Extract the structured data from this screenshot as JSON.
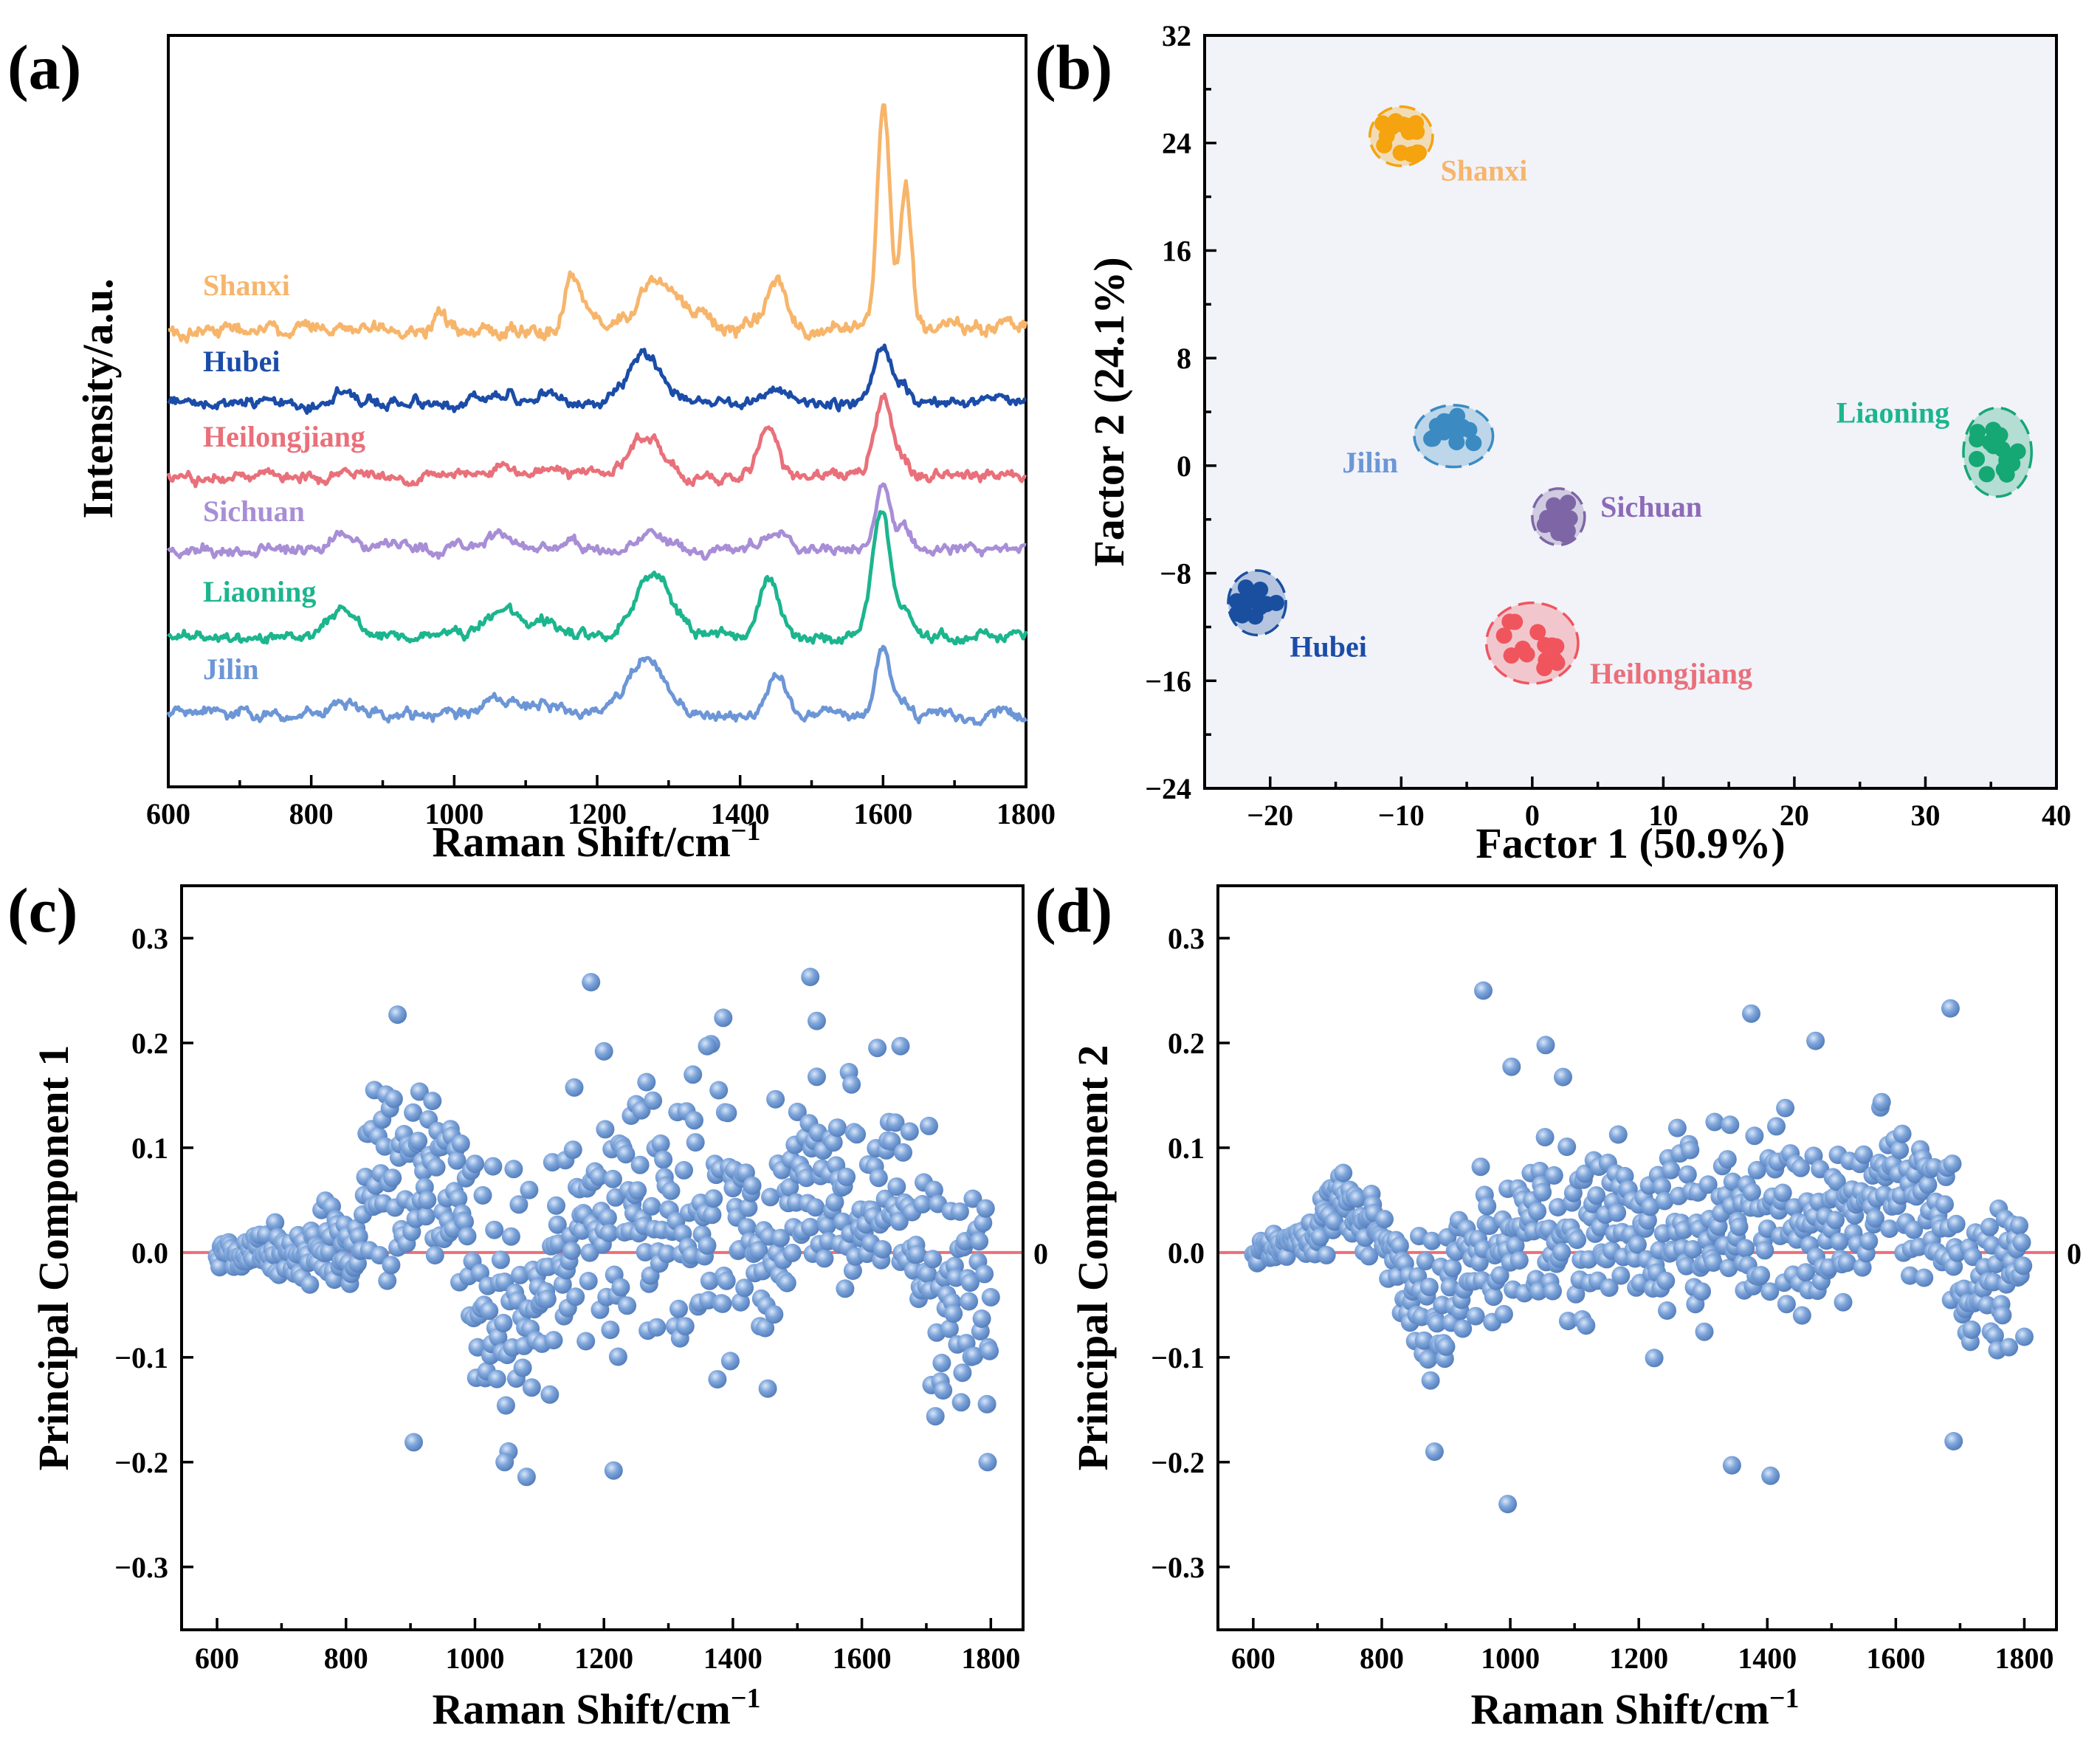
{
  "chart_data": [
    {
      "panel": "(a)",
      "type": "line",
      "xlabel": "Raman Shift/cm",
      "xlabel_sup": "−1",
      "ylabel": "Intensity/a.u.",
      "xlim": [
        600,
        1800
      ],
      "xticks": [
        "600",
        "800",
        "1000",
        "1200",
        "1400",
        "1600",
        "1800"
      ],
      "series": [
        {
          "name": "Shanxi",
          "color": "#F7B56B",
          "baseline": 0.8,
          "peaks": [
            [
              980,
              0.1,
              8
            ],
            [
              1165,
              0.32,
              10
            ],
            [
              1190,
              0.12,
              12
            ],
            [
              1283,
              0.35,
              22
            ],
            [
              1330,
              0.08,
              15
            ],
            [
              1450,
              0.3,
              14
            ],
            [
              1601,
              1.4,
              9
            ],
            [
              1632,
              0.9,
              8
            ],
            [
              1700,
              0.05,
              15
            ]
          ]
        },
        {
          "name": "Hubei",
          "color": "#1B4CA8",
          "baseline": 0.0,
          "peaks": [
            [
              845,
              0.12,
              15
            ],
            [
              1065,
              0.08,
              25
            ],
            [
              1130,
              0.1,
              18
            ],
            [
              1265,
              0.42,
              22
            ],
            [
              1450,
              0.16,
              14
            ],
            [
              1598,
              0.55,
              11
            ],
            [
              1625,
              0.15,
              9
            ]
          ]
        },
        {
          "name": "Heilongjiang",
          "color": "#E9707A",
          "baseline": 0.0,
          "peaks": [
            [
              845,
              0.06,
              15
            ],
            [
              1070,
              0.05,
              25
            ],
            [
              1130,
              0.08,
              18
            ],
            [
              1270,
              0.38,
              22
            ],
            [
              1440,
              0.45,
              13
            ],
            [
              1600,
              0.72,
              12
            ],
            [
              1630,
              0.12,
              9
            ]
          ]
        },
        {
          "name": "Sichuan",
          "color": "#A88ED6",
          "baseline": 0.0,
          "peaks": [
            [
              845,
              0.15,
              15
            ],
            [
              1065,
              0.1,
              25
            ],
            [
              1160,
              0.08,
              15
            ],
            [
              1278,
              0.12,
              22
            ],
            [
              1450,
              0.14,
              14
            ],
            [
              1600,
              0.55,
              11
            ],
            [
              1630,
              0.22,
              9
            ]
          ]
        },
        {
          "name": "Liaoning",
          "color": "#1CB58E",
          "baseline": 0.0,
          "peaks": [
            [
              845,
              0.25,
              16
            ],
            [
              1068,
              0.22,
              25
            ],
            [
              1130,
              0.12,
              18
            ],
            [
              1278,
              0.6,
              25
            ],
            [
              1440,
              0.55,
              13
            ],
            [
              1598,
              1.1,
              13
            ],
            [
              1630,
              0.2,
              9
            ]
          ]
        },
        {
          "name": "Jilin",
          "color": "#6C96D6",
          "baseline": 0.0,
          "peaks": [
            [
              660,
              0.05,
              10
            ],
            [
              845,
              0.1,
              15
            ],
            [
              1065,
              0.12,
              25
            ],
            [
              1130,
              0.08,
              18
            ],
            [
              1268,
              0.55,
              22
            ],
            [
              1450,
              0.35,
              14
            ],
            [
              1600,
              0.65,
              10
            ],
            [
              1630,
              0.12,
              9
            ]
          ]
        }
      ]
    },
    {
      "panel": "(b)",
      "type": "scatter",
      "xlabel": "Factor 1 (50.9%)",
      "ylabel": "Factor 2 (24.1%)",
      "xlim": [
        -25,
        40
      ],
      "ylim": [
        -24,
        32
      ],
      "xticks": [
        -20,
        -10,
        0,
        10,
        20,
        30,
        40
      ],
      "xtick_labels": [
        "−20",
        "−10",
        "0",
        "10",
        "20",
        "30",
        "40"
      ],
      "yticks": [
        -24,
        -16,
        -8,
        0,
        8,
        16,
        24,
        32
      ],
      "ytick_labels": [
        "−24",
        "−16",
        "−8",
        "0",
        "8",
        "16",
        "24",
        "32"
      ],
      "background": "#F1F3F9",
      "clusters": [
        {
          "name": "Shanxi",
          "color": "#F5A30E",
          "label_color": "#F7B56B",
          "center": [
            -10,
            24.5
          ],
          "radii": [
            2.4,
            2.2
          ],
          "spread": [
            1.5,
            1.5
          ],
          "n": 14
        },
        {
          "name": "Jilin",
          "color": "#3B8BC2",
          "label_color": "#6C96D6",
          "center": [
            -6,
            2.2
          ],
          "radii": [
            3.0,
            2.3
          ],
          "spread": [
            1.8,
            1.5
          ],
          "n": 14
        },
        {
          "name": "Sichuan",
          "color": "#7E66A6",
          "label_color": "#8D6AB8",
          "center": [
            2,
            -3.8
          ],
          "radii": [
            2.0,
            2.1
          ],
          "spread": [
            1.1,
            1.5
          ],
          "n": 12
        },
        {
          "name": "Hubei",
          "color": "#1A4FA0",
          "label_color": "#1B4CA8",
          "center": [
            -21,
            -10.2
          ],
          "radii": [
            2.2,
            2.4
          ],
          "spread": [
            1.6,
            1.5
          ],
          "n": 15
        },
        {
          "name": "Heilongjiang",
          "color": "#F0555E",
          "label_color": "#E9707A",
          "center": [
            0,
            -13.2
          ],
          "radii": [
            3.5,
            3.0
          ],
          "spread": [
            2.2,
            2.0
          ],
          "n": 14
        },
        {
          "name": "Liaoning",
          "color": "#15A774",
          "label_color": "#1CB58E",
          "center": [
            35.5,
            1.0
          ],
          "radii": [
            2.6,
            3.3
          ],
          "spread": [
            1.6,
            2.0
          ],
          "n": 16
        }
      ],
      "labels": [
        {
          "text": "Shanxi",
          "at": [
            -7,
            21.2
          ]
        },
        {
          "text": "Jilin",
          "at": [
            -14.5,
            -0.5
          ]
        },
        {
          "text": "Sichuan",
          "at": [
            5.2,
            -3.8
          ]
        },
        {
          "text": "Hubei",
          "at": [
            -18.5,
            -14.2
          ]
        },
        {
          "text": "Heilongjiang",
          "at": [
            4.4,
            -16.2
          ]
        },
        {
          "text": "Liaoning",
          "at": [
            23.2,
            3.2
          ]
        }
      ]
    },
    {
      "panel": "(c)",
      "type": "scatter",
      "xlabel": "Raman Shift/cm",
      "xlabel_sup": "−1",
      "ylabel": "Principal Component 1",
      "xlim": [
        545,
        1850
      ],
      "ylim": [
        -0.36,
        0.35
      ],
      "xticks": [
        600,
        800,
        1000,
        1200,
        1400,
        1600,
        1800
      ],
      "yticks": [
        -0.3,
        -0.2,
        -0.1,
        0.0,
        0.1,
        0.2,
        0.3
      ],
      "ytick_labels": [
        "−0.3",
        "−0.2",
        "−0.1",
        "0.0",
        "0.1",
        "0.2",
        "0.3"
      ],
      "zero_line_label": "0",
      "point_color": "#7FA6DB",
      "amplitude_profile": [
        [
          600,
          0.015
        ],
        [
          690,
          0.02
        ],
        [
          700,
          0.025
        ],
        [
          820,
          0.03
        ],
        [
          830,
          0.09
        ],
        [
          960,
          0.08
        ],
        [
          1000,
          0.1
        ],
        [
          1100,
          0.1
        ],
        [
          1200,
          0.12
        ],
        [
          1400,
          0.11
        ],
        [
          1500,
          0.1
        ],
        [
          1650,
          0.09
        ],
        [
          1800,
          0.12
        ]
      ],
      "mean_profile": [
        [
          600,
          0.0
        ],
        [
          820,
          0.0
        ],
        [
          830,
          0.09
        ],
        [
          980,
          0.05
        ],
        [
          1000,
          -0.05
        ],
        [
          1100,
          -0.05
        ],
        [
          1180,
          0.04
        ],
        [
          1300,
          0.05
        ],
        [
          1400,
          0.04
        ],
        [
          1450,
          -0.02
        ],
        [
          1500,
          0.06
        ],
        [
          1650,
          0.06
        ],
        [
          1700,
          0.0
        ],
        [
          1800,
          -0.04
        ]
      ],
      "highlights": [
        [
          880,
          0.227
        ],
        [
          1180,
          0.258
        ],
        [
          1520,
          0.263
        ],
        [
          1385,
          0.224
        ],
        [
          1200,
          0.192
        ],
        [
          1215,
          -0.208
        ],
        [
          1046,
          -0.2
        ],
        [
          1795,
          -0.2
        ],
        [
          905,
          -0.181
        ],
        [
          1660,
          0.197
        ],
        [
          1360,
          0.197
        ],
        [
          1530,
          0.221
        ]
      ]
    },
    {
      "panel": "(d)",
      "type": "scatter",
      "xlabel": "Raman Shift/cm",
      "xlabel_sup": "−1",
      "ylabel": "Principal Component 2",
      "xlim": [
        545,
        1850
      ],
      "ylim": [
        -0.36,
        0.35
      ],
      "xticks": [
        600,
        800,
        1000,
        1200,
        1400,
        1600,
        1800
      ],
      "yticks": [
        -0.3,
        -0.2,
        -0.1,
        0.0,
        0.1,
        0.2,
        0.3
      ],
      "ytick_labels": [
        "−0.3",
        "−0.2",
        "−0.1",
        "0.0",
        "0.1",
        "0.2",
        "0.3"
      ],
      "zero_line_label": "0",
      "point_color": "#7FA6DB",
      "amplitude_profile": [
        [
          600,
          0.015
        ],
        [
          700,
          0.02
        ],
        [
          710,
          0.03
        ],
        [
          800,
          0.03
        ],
        [
          850,
          0.06
        ],
        [
          1000,
          0.08
        ],
        [
          1200,
          0.08
        ],
        [
          1400,
          0.09
        ],
        [
          1600,
          0.07
        ],
        [
          1800,
          0.07
        ]
      ],
      "mean_profile": [
        [
          600,
          0.0
        ],
        [
          700,
          0.02
        ],
        [
          720,
          0.05
        ],
        [
          800,
          0.02
        ],
        [
          850,
          -0.04
        ],
        [
          950,
          -0.02
        ],
        [
          1050,
          0.04
        ],
        [
          1200,
          0.02
        ],
        [
          1350,
          0.02
        ],
        [
          1450,
          0.04
        ],
        [
          1500,
          0.02
        ],
        [
          1600,
          0.08
        ],
        [
          1680,
          0.04
        ],
        [
          1700,
          -0.05
        ],
        [
          1800,
          -0.02
        ]
      ],
      "highlights": [
        [
          958,
          0.25
        ],
        [
          996,
          -0.24
        ],
        [
          1405,
          -0.213
        ],
        [
          1345,
          -0.203
        ],
        [
          1375,
          0.228
        ],
        [
          1685,
          0.233
        ],
        [
          1055,
          0.198
        ],
        [
          1475,
          0.202
        ],
        [
          1690,
          -0.18
        ],
        [
          882,
          -0.19
        ]
      ]
    }
  ]
}
